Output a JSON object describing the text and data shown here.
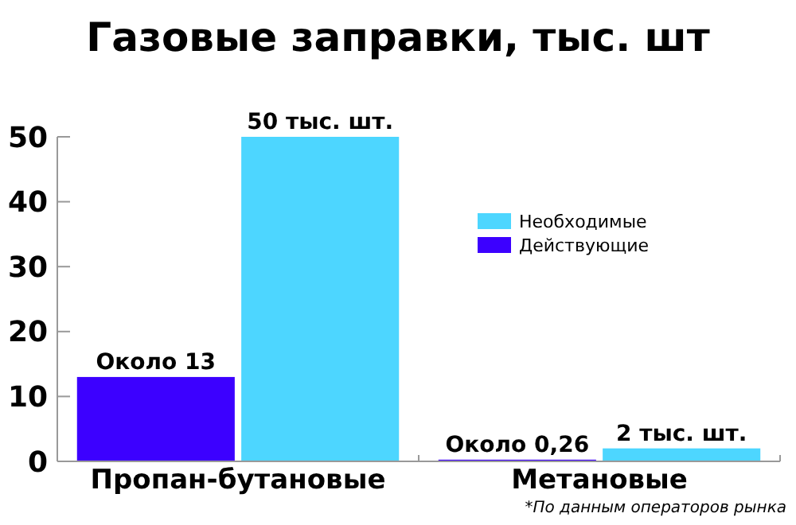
{
  "chart_data": {
    "type": "bar",
    "title": "Газовые заправки, тыс. шт",
    "categories": [
      "Пропан-бутановые",
      "Метановые"
    ],
    "series": [
      {
        "name": "Действующие",
        "color": "#3c00ff",
        "values": [
          13,
          0.26
        ],
        "value_labels": [
          "Около 13",
          "Около 0,26"
        ]
      },
      {
        "name": "Необходимые",
        "color": "#4dd6ff",
        "values": [
          50,
          2
        ],
        "value_labels": [
          "50 тыс. шт.",
          "2 тыс. шт."
        ]
      }
    ],
    "ylim": [
      0,
      50
    ],
    "yticks": [
      0,
      10,
      20,
      30,
      40,
      50
    ],
    "grid": false,
    "legend": "right",
    "annotations": [
      "*По данным операторов рынка"
    ]
  }
}
